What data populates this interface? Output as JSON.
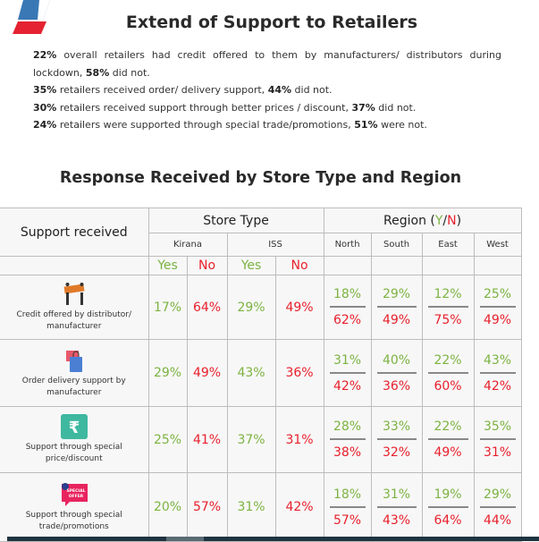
{
  "title": "Extend of Support to Retailers",
  "summary": [
    {
      "a": "22%",
      "b": " overall retailers had credit offered to them by manufacturers/ distributors during lockdown, ",
      "c": "58%",
      "d": " did not."
    },
    {
      "a": "35%",
      "b": " retailers received order/ delivery support, ",
      "c": "44%",
      "d": " did not."
    },
    {
      "a": "30%",
      "b": " retailers received support through better prices / discount, ",
      "c": "37%",
      "d": " did not."
    },
    {
      "a": "24%",
      "b": " retailers were supported through special trade/promotions, ",
      "c": "51%",
      "d": " were not."
    }
  ],
  "table_title": "Response Received by Store Type and Region",
  "header": {
    "support": "Support received",
    "store_type": "Store Type",
    "region": "Region (",
    "region_y": "Y",
    "region_slash": "/",
    "region_n": "N",
    "region_end": ")",
    "kirana": "Kirana",
    "iss": "ISS",
    "north": "North",
    "south": "South",
    "east": "East",
    "west": "West",
    "yes": "Yes",
    "no": "No"
  },
  "colors": {
    "yes": "#7cb342",
    "no": "#e8202c"
  },
  "rows": [
    {
      "icon": "credit-banner-icon",
      "label": "Credit offered by distributor/ manufacturer",
      "kirana_yes": "17%",
      "kirana_no": "64%",
      "iss_yes": "29%",
      "iss_no": "49%",
      "regions": [
        [
          "18%",
          "62%"
        ],
        [
          "29%",
          "49%"
        ],
        [
          "12%",
          "75%"
        ],
        [
          "25%",
          "49%"
        ]
      ]
    },
    {
      "icon": "shopping-bag-icon",
      "label": "Order delivery support by manufacturer",
      "kirana_yes": "29%",
      "kirana_no": "49%",
      "iss_yes": "43%",
      "iss_no": "36%",
      "regions": [
        [
          "31%",
          "42%"
        ],
        [
          "40%",
          "36%"
        ],
        [
          "22%",
          "60%"
        ],
        [
          "43%",
          "42%"
        ]
      ]
    },
    {
      "icon": "rupee-icon",
      "label": "Support through special price/discount",
      "kirana_yes": "25%",
      "kirana_no": "41%",
      "iss_yes": "37%",
      "iss_no": "31%",
      "regions": [
        [
          "28%",
          "38%"
        ],
        [
          "33%",
          "32%"
        ],
        [
          "22%",
          "49%"
        ],
        [
          "35%",
          "31%"
        ]
      ]
    },
    {
      "icon": "special-offer-icon",
      "icon_text": "SPECIAL OFFER",
      "label": "Support through special trade/promotions",
      "kirana_yes": "20%",
      "kirana_no": "57%",
      "iss_yes": "31%",
      "iss_no": "42%",
      "regions": [
        [
          "18%",
          "57%"
        ],
        [
          "31%",
          "43%"
        ],
        [
          "19%",
          "64%"
        ],
        [
          "29%",
          "44%"
        ]
      ]
    }
  ]
}
